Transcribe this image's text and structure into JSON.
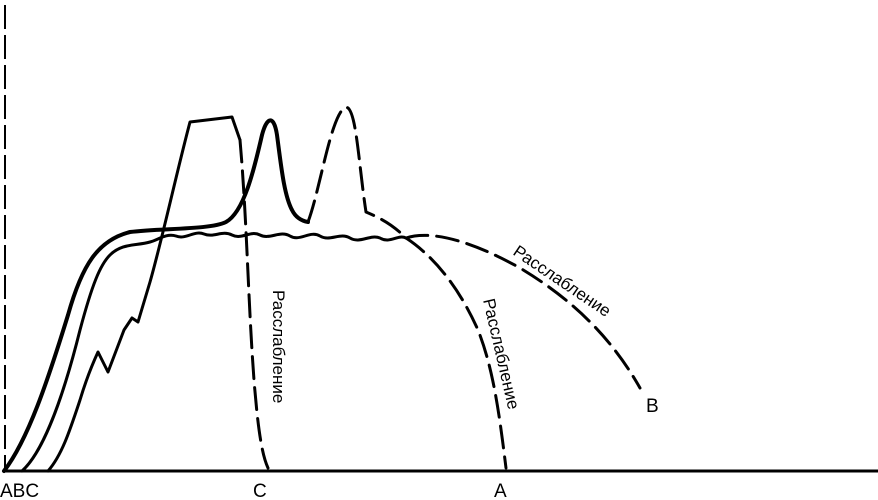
{
  "diagram": {
    "origin_label": "ABC",
    "point_c_label": "C",
    "point_a_label": "A",
    "point_b_label": "B",
    "relax_c": "Расслабление",
    "relax_a": "Расслабление",
    "relax_b": "Расслабление",
    "line_color": "#000000",
    "background": "#ffffff"
  }
}
